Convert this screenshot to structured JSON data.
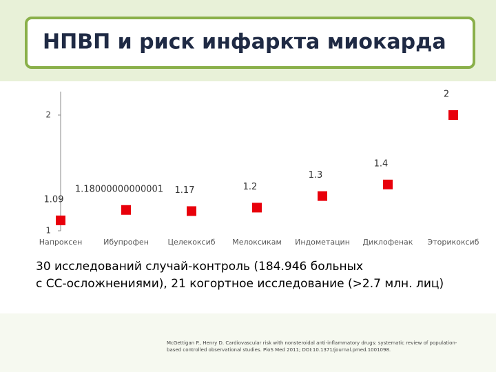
{
  "slide": {
    "title": "НПВП и риск инфаркта миокарда",
    "text": [
      "30 исследований случай-контроль (184.946 больных",
      "с СС-осложнениями), 21 когортное исследование (>2.7 млн. лиц)"
    ],
    "citation": [
      "McGettigan P., Henry D. Cardiovascular risk with nonsteroidal anti-inflammatory drugs: systematic review of population-",
      "based controlled observational studies. PloS Med 2011; DOI:10.1371/journal.pmed.1001098."
    ]
  },
  "chart_data": {
    "type": "scatter",
    "categories": [
      "Напроксен",
      "Ибупрофен",
      "Целекоксиб",
      "Мелоксикам",
      "Индометацин",
      "Диклофенак",
      "Эторикоксиб"
    ],
    "values": [
      1.09,
      1.18000000000001,
      1.17,
      1.2,
      1.3,
      1.4,
      2
    ],
    "color": "#e8000b",
    "ylim": [
      1,
      2.2
    ],
    "yticks": [
      1,
      2
    ]
  }
}
